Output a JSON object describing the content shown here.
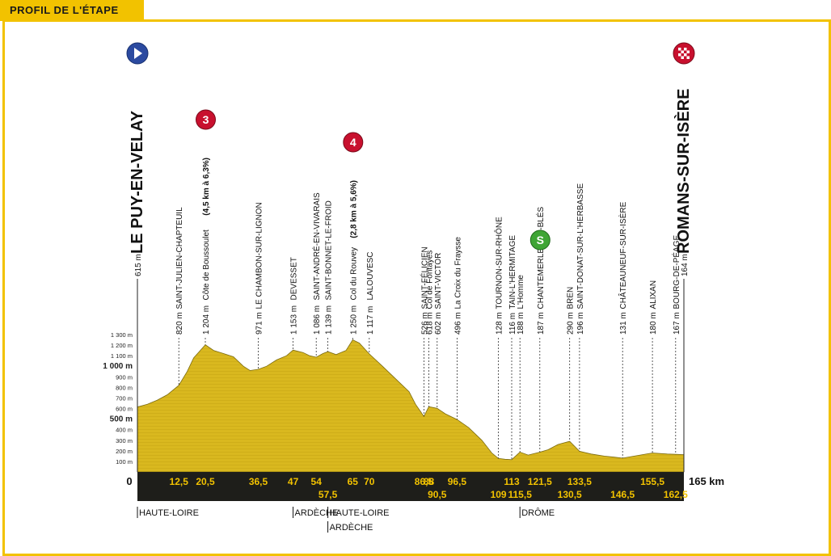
{
  "header": {
    "title": "PROFIL DE L'ÉTAPE"
  },
  "colors": {
    "accent": "#f2c200",
    "terrain": "#d9b81f",
    "band": "#1e1e1a",
    "km_text": "#f2c200"
  },
  "chart_data": {
    "type": "area",
    "x_unit": "km",
    "x_max": 165,
    "x_end_label": "165 km",
    "x_start_label": "0",
    "y_ticks": [
      "100 m",
      "200 m",
      "300 m",
      "400 m",
      "500 m",
      "600 m",
      "700 m",
      "800 m",
      "900 m",
      "1 000 m",
      "1 100 m",
      "1 200 m",
      "1 300 m"
    ],
    "y_tick_values": [
      100,
      200,
      300,
      400,
      500,
      600,
      700,
      800,
      900,
      1000,
      1100,
      1200,
      1300
    ],
    "y_bold_ticks": [
      500,
      1000
    ],
    "y_max": 1300,
    "profile": [
      [
        0,
        615
      ],
      [
        3,
        640
      ],
      [
        6,
        680
      ],
      [
        9,
        730
      ],
      [
        12.5,
        820
      ],
      [
        15,
        950
      ],
      [
        17,
        1080
      ],
      [
        19,
        1150
      ],
      [
        20.5,
        1204
      ],
      [
        23,
        1150
      ],
      [
        26,
        1120
      ],
      [
        29,
        1090
      ],
      [
        32,
        1000
      ],
      [
        34,
        960
      ],
      [
        36.5,
        971
      ],
      [
        39,
        1000
      ],
      [
        42,
        1060
      ],
      [
        45,
        1100
      ],
      [
        47,
        1153
      ],
      [
        50,
        1130
      ],
      [
        52,
        1100
      ],
      [
        54,
        1086
      ],
      [
        56,
        1120
      ],
      [
        57.5,
        1139
      ],
      [
        60,
        1110
      ],
      [
        63,
        1150
      ],
      [
        65,
        1250
      ],
      [
        67,
        1220
      ],
      [
        70,
        1117
      ],
      [
        74,
        1000
      ],
      [
        78,
        880
      ],
      [
        82,
        760
      ],
      [
        84,
        640
      ],
      [
        86.5,
        526
      ],
      [
        88,
        618
      ],
      [
        90.5,
        602
      ],
      [
        93,
        550
      ],
      [
        96.5,
        496
      ],
      [
        100,
        420
      ],
      [
        104,
        300
      ],
      [
        107,
        180
      ],
      [
        109,
        128
      ],
      [
        111,
        120
      ],
      [
        113,
        116
      ],
      [
        115.5,
        188
      ],
      [
        118,
        160
      ],
      [
        121.5,
        187
      ],
      [
        124,
        210
      ],
      [
        127,
        260
      ],
      [
        130.5,
        290
      ],
      [
        133.5,
        196
      ],
      [
        137,
        170
      ],
      [
        141,
        150
      ],
      [
        144,
        140
      ],
      [
        146.5,
        131
      ],
      [
        150,
        150
      ],
      [
        155.5,
        180
      ],
      [
        160,
        170
      ],
      [
        162.5,
        167
      ],
      [
        165,
        164
      ]
    ],
    "km_markers": {
      "top_row": [
        {
          "km": 12.5,
          "label": "12,5"
        },
        {
          "km": 20.5,
          "label": "20,5"
        },
        {
          "km": 36.5,
          "label": "36,5"
        },
        {
          "km": 47,
          "label": "47"
        },
        {
          "km": 54,
          "label": "54"
        },
        {
          "km": 65,
          "label": "65"
        },
        {
          "km": 70,
          "label": "70"
        },
        {
          "km": 86.5,
          "label": "86,5"
        },
        {
          "km": 88,
          "label": "88"
        },
        {
          "km": 96.5,
          "label": "96,5"
        },
        {
          "km": 113,
          "label": "113"
        },
        {
          "km": 121.5,
          "label": "121,5"
        },
        {
          "km": 133.5,
          "label": "133,5"
        },
        {
          "km": 155.5,
          "label": "155,5"
        }
      ],
      "bottom_row": [
        {
          "km": 57.5,
          "label": "57,5"
        },
        {
          "km": 90.5,
          "label": "90,5"
        },
        {
          "km": 109,
          "label": "109"
        },
        {
          "km": 115.5,
          "label": "115,5"
        },
        {
          "km": 130.5,
          "label": "130,5"
        },
        {
          "km": 146.5,
          "label": "146,5"
        },
        {
          "km": 162.5,
          "label": "162,5"
        }
      ]
    },
    "places": [
      {
        "km": 0,
        "alt": "615 m",
        "name": "LE PUY-EN-VELAY",
        "kind": "start"
      },
      {
        "km": 12.5,
        "alt": "820 m",
        "name": "SAINT-JULIEN-CHAPTEUIL"
      },
      {
        "km": 20.5,
        "alt": "1 204 m",
        "name": "Côte de Boussoulet",
        "extra": "(4,5 km à 6,3%)",
        "climb": "3"
      },
      {
        "km": 36.5,
        "alt": "971 m",
        "name": "LE CHAMBON-SUR-LIGNON"
      },
      {
        "km": 47,
        "alt": "1 153 m",
        "name": "DEVESSET"
      },
      {
        "km": 54,
        "alt": "1 086 m",
        "name": "SAINT-ANDRÉ-EN-VIVARAIS"
      },
      {
        "km": 57.5,
        "alt": "1 139 m",
        "name": "SAINT-BONNET-LE-FROID"
      },
      {
        "km": 65,
        "alt": "1 250 m",
        "name": "Col du Rouvey",
        "extra": "(2,8 km à 5,6%)",
        "climb": "4"
      },
      {
        "km": 70,
        "alt": "1 117 m",
        "name": "LALOUVESC"
      },
      {
        "km": 86.5,
        "alt": "526 m",
        "name": "SAINT-FÉLICIEN"
      },
      {
        "km": 88,
        "alt": "618 m",
        "name": "Col de Fontayes"
      },
      {
        "km": 90.5,
        "alt": "602 m",
        "name": "SAINT-VICTOR"
      },
      {
        "km": 96.5,
        "alt": "496 m",
        "name": "La Croix du Fraysse"
      },
      {
        "km": 109,
        "alt": "128 m",
        "name": "TOURNON-SUR-RHÔNE"
      },
      {
        "km": 113,
        "alt": "116 m",
        "name": "TAIN-L'HERMITAGE"
      },
      {
        "km": 115.5,
        "alt": "188 m",
        "name": "L'Homme"
      },
      {
        "km": 121.5,
        "alt": "187 m",
        "name": "CHANTEMERLE-LES-BLÉS",
        "sprint": "S"
      },
      {
        "km": 130.5,
        "alt": "290 m",
        "name": "BREN"
      },
      {
        "km": 133.5,
        "alt": "196 m",
        "name": "SAINT-DONAT-SUR-L'HERBASSE"
      },
      {
        "km": 146.5,
        "alt": "131 m",
        "name": "CHÂTEAUNEUF-SUR-ISÈRE"
      },
      {
        "km": 155.5,
        "alt": "180 m",
        "name": "ALIXAN"
      },
      {
        "km": 162.5,
        "alt": "167 m",
        "name": "BOURG-DE-PÉAGE"
      },
      {
        "km": 165,
        "alt": "164 m",
        "name": "ROMANS-SUR-ISÈRE",
        "kind": "finish"
      }
    ],
    "regions": [
      {
        "km": 0,
        "label": "HAUTE-LOIRE",
        "row": 0
      },
      {
        "km": 47,
        "label": "ARDÈCHE",
        "row": 0
      },
      {
        "km": 57.5,
        "label": "HAUTE-LOIRE",
        "row": 0
      },
      {
        "km": 57.5,
        "label": "ARDÈCHE",
        "row": 1
      },
      {
        "km": 115.5,
        "label": "DRÔME",
        "row": 0
      }
    ]
  }
}
